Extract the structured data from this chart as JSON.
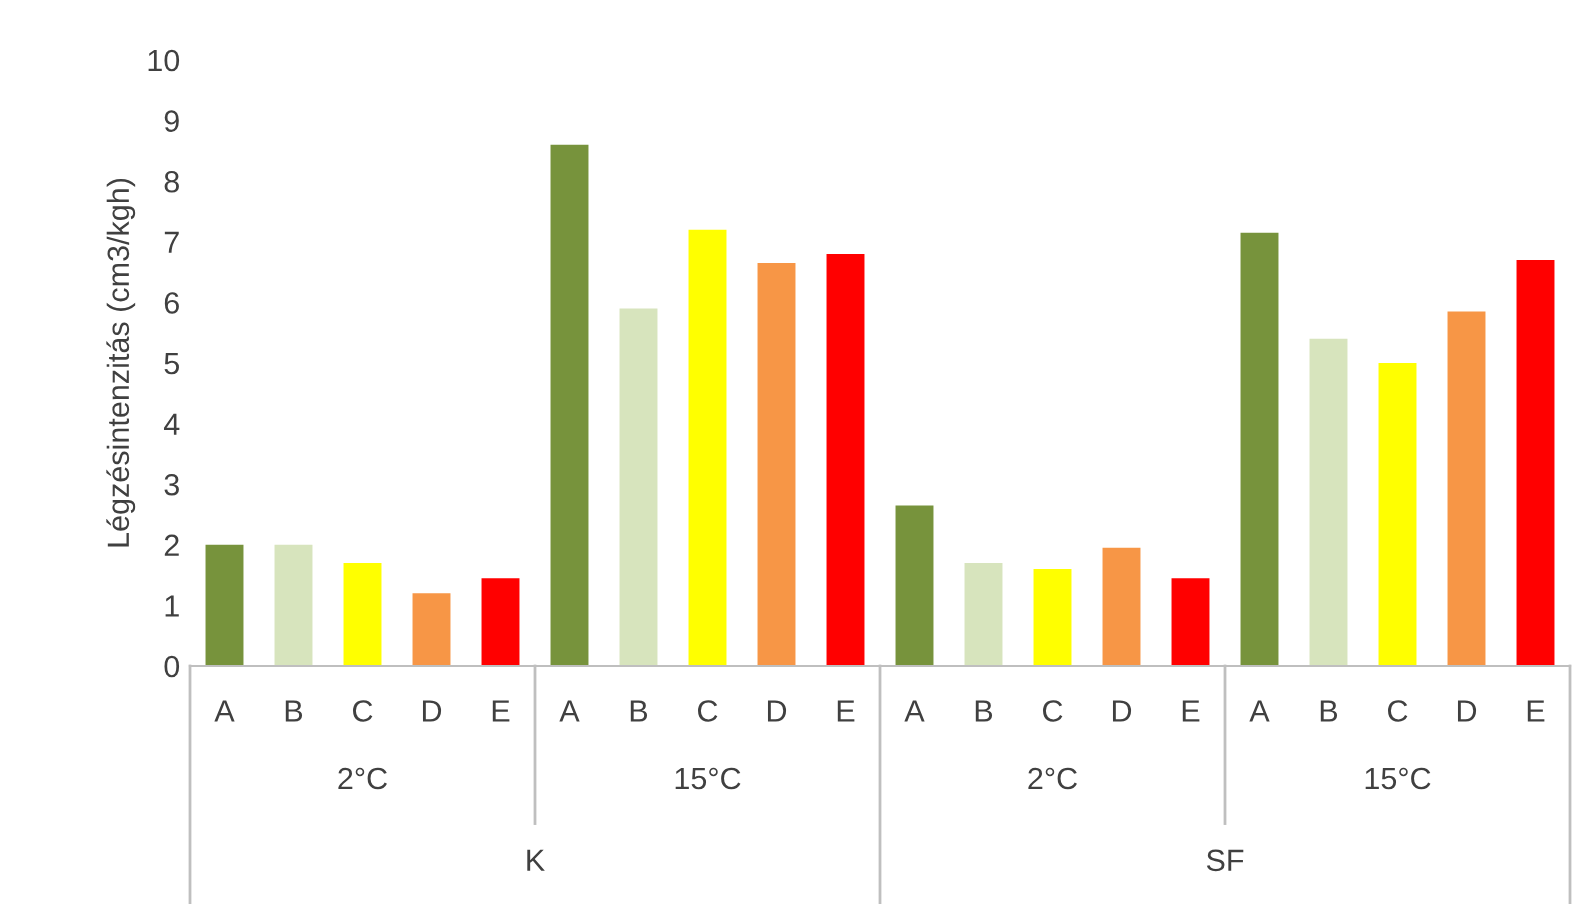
{
  "chart_data": {
    "type": "bar",
    "ylabel": "Légzésintenzitás (cm3/kgh)",
    "categories": [
      "A",
      "B",
      "C",
      "D",
      "E",
      "A",
      "B",
      "C",
      "D",
      "E",
      "A",
      "B",
      "C",
      "D",
      "E",
      "A",
      "B",
      "C",
      "D",
      "E"
    ],
    "values": [
      2.0,
      2.0,
      1.7,
      1.2,
      1.45,
      8.6,
      5.9,
      7.2,
      6.65,
      6.8,
      2.65,
      1.7,
      1.6,
      1.95,
      1.45,
      7.15,
      5.4,
      5.0,
      5.85,
      6.7
    ],
    "colors": [
      "#77933c",
      "#d7e4bd",
      "#ffff00",
      "#f79646",
      "#ff0000",
      "#77933c",
      "#d7e4bd",
      "#ffff00",
      "#f79646",
      "#ff0000",
      "#77933c",
      "#d7e4bd",
      "#ffff00",
      "#f79646",
      "#ff0000",
      "#77933c",
      "#d7e4bd",
      "#ffff00",
      "#f79646",
      "#ff0000"
    ],
    "annotations": [
      "2°C",
      "15°C",
      "2°C",
      "15°C",
      "K",
      "SF"
    ],
    "ylim": [
      0,
      10
    ],
    "yticks": [
      0,
      1,
      2,
      3,
      4,
      5,
      6,
      7,
      8,
      9,
      10
    ],
    "grid": false
  }
}
